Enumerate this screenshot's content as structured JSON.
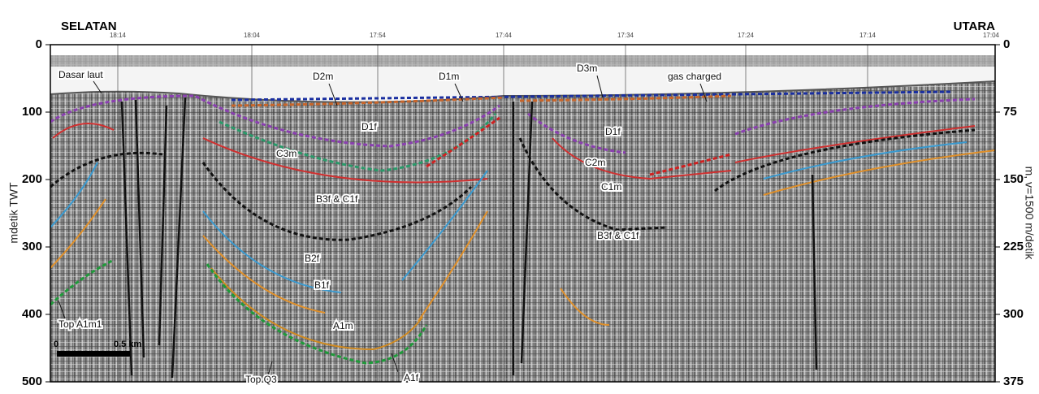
{
  "header": {
    "left": "SELATAN",
    "right": "UTARA"
  },
  "axes": {
    "left": {
      "title": "mdetik TWT",
      "ticks": [
        "0",
        "100",
        "200",
        "300",
        "400",
        "500"
      ]
    },
    "right": {
      "title": "m, v=1500 m/detik",
      "ticks": [
        "0",
        "75",
        "150",
        "225",
        "300",
        "375"
      ]
    },
    "top": {
      "ticks": [
        "18:14",
        "18:04",
        "17:54",
        "17:44",
        "17:34",
        "17:24",
        "17:14",
        "17:04"
      ]
    }
  },
  "labels": [
    "Dasar laut",
    "D2m",
    "D1m",
    "D3m",
    "gas charged",
    "D1f",
    "D1f",
    "C3m",
    "C2m",
    "C1m",
    "B3f & C1f",
    "B3f & C1f",
    "B2f",
    "B1f",
    "A1m",
    "A1f",
    "Top Q3",
    "Top A1m1"
  ],
  "scale_bar": {
    "start": "0",
    "end": "0.5 km"
  }
}
